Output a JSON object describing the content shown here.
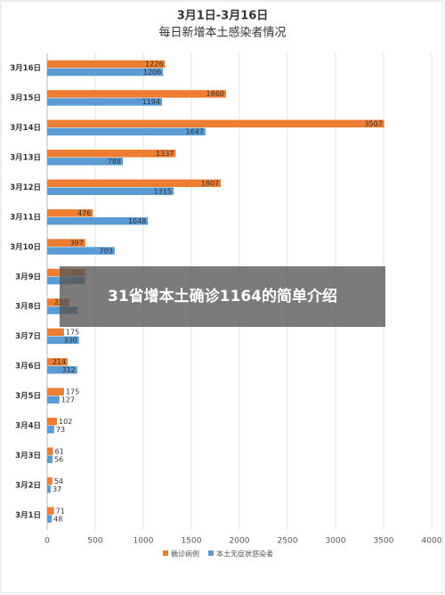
{
  "chart_data": {
    "type": "hbar",
    "title": "3月1日-3月16日",
    "subtitle": "每日新增本土感染者情况",
    "categories": [
      "3月16日",
      "3月15日",
      "3月14日",
      "3月13日",
      "3月12日",
      "3月11日",
      "3月10日",
      "3月9日",
      "3月8日",
      "3月7日",
      "3月6日",
      "3月5日",
      "3月4日",
      "3月3日",
      "3月2日",
      "3月1日"
    ],
    "series": [
      {
        "name": "确诊病例",
        "color": "#ed7d31",
        "values": [
          1226,
          1860,
          3507,
          1337,
          1807,
          476,
          397,
          402,
          233,
          175,
          214,
          175,
          102,
          61,
          54,
          71
        ]
      },
      {
        "name": "本土无症状感染者",
        "color": "#5b9bd5",
        "values": [
          1206,
          1194,
          1647,
          788,
          1315,
          1048,
          703,
          400,
          322,
          330,
          312,
          127,
          73,
          56,
          37,
          48
        ]
      }
    ],
    "xlim": [
      0,
      4000
    ],
    "xticks": [
      0,
      500,
      1000,
      1500,
      2000,
      2500,
      3000,
      3500,
      4000
    ],
    "grid": true
  },
  "overlay": {
    "text": "31省增本土确诊1164的简单介绍"
  }
}
